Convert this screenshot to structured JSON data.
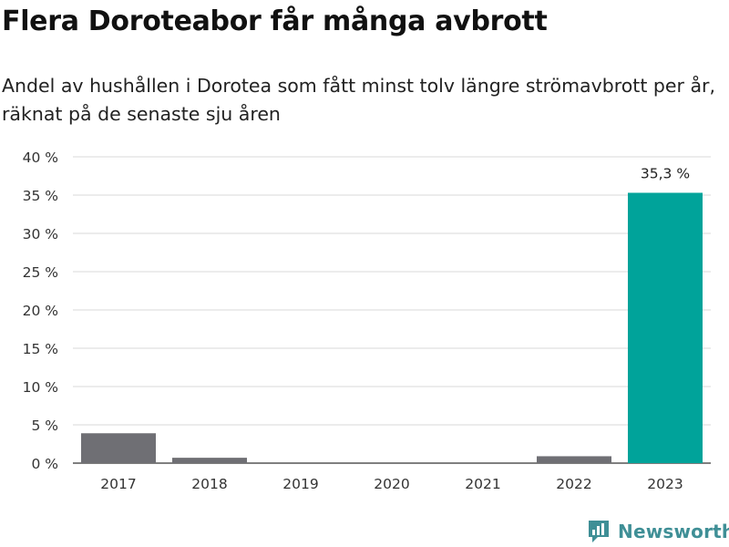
{
  "chart_data": {
    "type": "bar",
    "title": "Flera Doroteabor får många avbrott",
    "subtitle": "Andel av hushållen i Dorotea som fått minst tolv längre strömavbrott per år, räknat på de senaste sju åren",
    "categories": [
      "2017",
      "2018",
      "2019",
      "2020",
      "2021",
      "2022",
      "2023"
    ],
    "values": [
      3.9,
      0.7,
      0,
      0,
      0,
      0.9,
      35.3
    ],
    "ylim": [
      0,
      40
    ],
    "yticks": [
      0,
      5,
      10,
      15,
      20,
      25,
      30,
      35,
      40
    ],
    "ytick_labels": [
      "0 %",
      "5 %",
      "10 %",
      "15 %",
      "20 %",
      "25 %",
      "30 %",
      "35 %",
      "40 %"
    ],
    "data_labels": [
      {
        "index": 6,
        "text": "35,3 %"
      }
    ],
    "xlabel": "",
    "ylabel": "",
    "grid": true,
    "colors": {
      "default": "#6f6f74",
      "highlight": "#00a39a",
      "grid": "#d9d9d9",
      "axis": "#333333"
    },
    "highlight_index": 6
  },
  "brand": {
    "name": "Newsworthy",
    "icon": "newsworthy-logo-icon",
    "color": "#3f8f96"
  }
}
